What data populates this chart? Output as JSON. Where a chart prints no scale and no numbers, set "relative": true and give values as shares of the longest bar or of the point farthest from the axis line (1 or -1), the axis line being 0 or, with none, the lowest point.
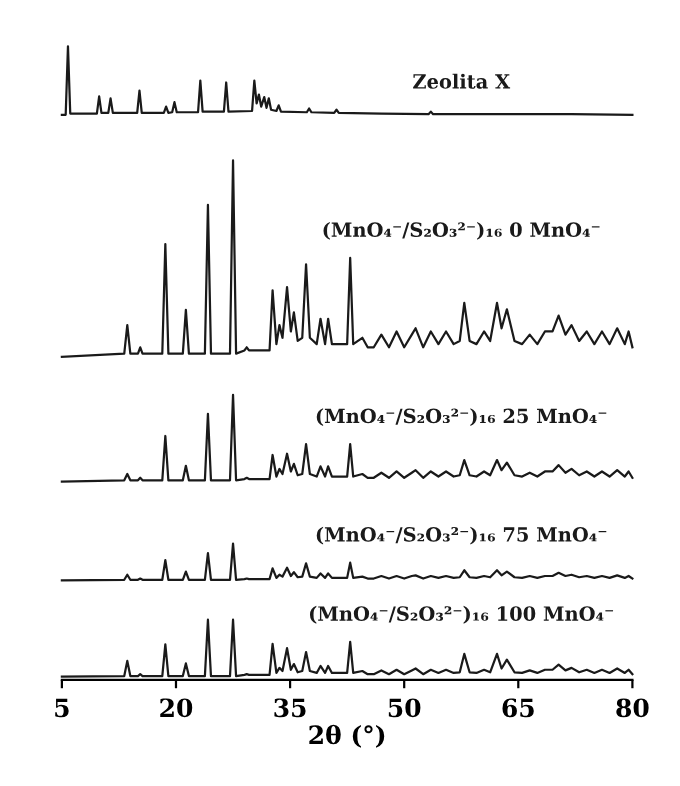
{
  "chart_data": {
    "type": "line",
    "relative": true,
    "xlabel": "2θ (°)",
    "xlim": [
      5,
      80
    ],
    "xticks": [
      5,
      20,
      35,
      50,
      65,
      80
    ],
    "grid": false,
    "legend": false,
    "marker": "none",
    "line_style": "solid",
    "x": [
      5,
      13.2,
      13.6,
      14.0,
      15.0,
      15.3,
      15.6,
      18.2,
      18.6,
      19.0,
      20.9,
      21.3,
      21.7,
      23.8,
      24.2,
      24.6,
      27.1,
      27.5,
      27.9,
      29.0,
      29.3,
      29.6,
      32.3,
      32.7,
      33.2,
      33.6,
      34.0,
      34.6,
      35.1,
      35.5,
      36.0,
      36.6,
      37.1,
      37.6,
      38.5,
      39.0,
      39.6,
      40.0,
      40.5,
      42.5,
      42.9,
      43.3,
      44.5,
      45.2,
      46.0,
      47,
      48,
      49,
      50,
      51,
      51.5,
      52.5,
      53.5,
      54.5,
      55.5,
      56.5,
      57.3,
      57.9,
      58.6,
      59.5,
      60.5,
      61.3,
      62.2,
      62.8,
      63.5,
      64.5,
      65.5,
      66.5,
      67.5,
      68.5,
      69.5,
      70.3,
      71.2,
      72,
      73,
      74,
      75,
      76,
      77,
      78,
      79,
      79.5,
      80
    ],
    "series": [
      {
        "name": "Zeolita X",
        "color": "#1a1a1a",
        "x": [
          5,
          5.5,
          5.8,
          6.1,
          9.6,
          9.9,
          10.2,
          11.1,
          11.4,
          11.7,
          14.9,
          15.2,
          15.5,
          18.4,
          18.7,
          19.0,
          19.5,
          19.8,
          20.1,
          22.9,
          23.2,
          23.5,
          26.3,
          26.6,
          26.9,
          30.0,
          30.3,
          30.6,
          30.9,
          31.2,
          31.6,
          31.9,
          32.2,
          32.5,
          33.2,
          33.5,
          33.8,
          37.2,
          37.5,
          37.8,
          40.8,
          41.1,
          41.4,
          47,
          53.2,
          53.5,
          53.8,
          60,
          66,
          72,
          80
        ],
        "values": [
          0.892,
          0.892,
          1.0,
          0.894,
          0.894,
          0.921,
          0.895,
          0.895,
          0.918,
          0.895,
          0.895,
          0.93,
          0.895,
          0.895,
          0.905,
          0.895,
          0.896,
          0.912,
          0.896,
          0.896,
          0.946,
          0.897,
          0.897,
          0.943,
          0.897,
          0.898,
          0.946,
          0.91,
          0.924,
          0.905,
          0.92,
          0.903,
          0.918,
          0.9,
          0.898,
          0.907,
          0.897,
          0.896,
          0.902,
          0.896,
          0.895,
          0.9,
          0.895,
          0.894,
          0.893,
          0.897,
          0.893,
          0.893,
          0.893,
          0.893,
          0.892
        ]
      },
      {
        "name": "(MnO₄⁻/S₂O₃²⁻)₁₆ 0 MnO₄⁻",
        "color": "#1a1a1a",
        "values": [
          0.51,
          0.515,
          0.56,
          0.515,
          0.515,
          0.525,
          0.515,
          0.515,
          0.688,
          0.515,
          0.515,
          0.584,
          0.515,
          0.515,
          0.75,
          0.515,
          0.515,
          0.82,
          0.515,
          0.52,
          0.525,
          0.52,
          0.52,
          0.615,
          0.53,
          0.56,
          0.54,
          0.62,
          0.55,
          0.58,
          0.535,
          0.54,
          0.656,
          0.54,
          0.53,
          0.57,
          0.53,
          0.57,
          0.53,
          0.53,
          0.666,
          0.53,
          0.54,
          0.525,
          0.525,
          0.545,
          0.525,
          0.55,
          0.525,
          0.545,
          0.555,
          0.525,
          0.55,
          0.53,
          0.55,
          0.53,
          0.535,
          0.595,
          0.535,
          0.53,
          0.55,
          0.535,
          0.595,
          0.555,
          0.585,
          0.535,
          0.53,
          0.545,
          0.53,
          0.55,
          0.55,
          0.575,
          0.545,
          0.56,
          0.535,
          0.55,
          0.53,
          0.55,
          0.53,
          0.555,
          0.53,
          0.55,
          0.525
        ]
      },
      {
        "name": "(MnO₄⁻/S₂O₃²⁻)₁₆ 25 MnO₄⁻",
        "color": "#1a1a1a",
        "values": [
          0.313,
          0.315,
          0.325,
          0.315,
          0.315,
          0.319,
          0.315,
          0.315,
          0.385,
          0.315,
          0.315,
          0.338,
          0.315,
          0.315,
          0.42,
          0.315,
          0.315,
          0.45,
          0.315,
          0.317,
          0.319,
          0.317,
          0.317,
          0.355,
          0.321,
          0.333,
          0.325,
          0.357,
          0.329,
          0.341,
          0.323,
          0.325,
          0.372,
          0.325,
          0.321,
          0.337,
          0.321,
          0.337,
          0.321,
          0.321,
          0.372,
          0.321,
          0.325,
          0.319,
          0.319,
          0.327,
          0.319,
          0.329,
          0.319,
          0.327,
          0.331,
          0.319,
          0.329,
          0.321,
          0.329,
          0.321,
          0.323,
          0.347,
          0.323,
          0.321,
          0.329,
          0.323,
          0.347,
          0.331,
          0.343,
          0.323,
          0.321,
          0.327,
          0.321,
          0.329,
          0.329,
          0.339,
          0.327,
          0.333,
          0.323,
          0.329,
          0.321,
          0.329,
          0.321,
          0.331,
          0.321,
          0.329,
          0.319
        ]
      },
      {
        "name": "(MnO₄⁻/S₂O₃²⁻)₁₆ 75 MnO₄⁻",
        "color": "#1a1a1a",
        "values": [
          0.157,
          0.158,
          0.166,
          0.158,
          0.158,
          0.16,
          0.158,
          0.158,
          0.189,
          0.158,
          0.158,
          0.171,
          0.158,
          0.158,
          0.2,
          0.158,
          0.158,
          0.215,
          0.158,
          0.159,
          0.16,
          0.159,
          0.159,
          0.176,
          0.161,
          0.166,
          0.163,
          0.177,
          0.164,
          0.17,
          0.162,
          0.163,
          0.184,
          0.163,
          0.161,
          0.168,
          0.161,
          0.168,
          0.161,
          0.161,
          0.185,
          0.161,
          0.163,
          0.16,
          0.16,
          0.164,
          0.16,
          0.164,
          0.16,
          0.164,
          0.165,
          0.16,
          0.164,
          0.161,
          0.164,
          0.161,
          0.162,
          0.173,
          0.162,
          0.161,
          0.164,
          0.162,
          0.173,
          0.165,
          0.171,
          0.162,
          0.161,
          0.164,
          0.161,
          0.164,
          0.164,
          0.169,
          0.164,
          0.166,
          0.162,
          0.164,
          0.161,
          0.164,
          0.161,
          0.165,
          0.161,
          0.164,
          0.16
        ]
      },
      {
        "name": "(MnO₄⁻/S₂O₃²⁻)₁₆ 100 MnO₄⁻",
        "color": "#1a1a1a",
        "values": [
          0.005,
          0.006,
          0.03,
          0.006,
          0.006,
          0.009,
          0.006,
          0.006,
          0.056,
          0.006,
          0.006,
          0.026,
          0.006,
          0.006,
          0.095,
          0.006,
          0.006,
          0.095,
          0.006,
          0.008,
          0.009,
          0.008,
          0.008,
          0.057,
          0.011,
          0.019,
          0.014,
          0.05,
          0.016,
          0.025,
          0.012,
          0.014,
          0.044,
          0.014,
          0.011,
          0.022,
          0.011,
          0.022,
          0.011,
          0.011,
          0.06,
          0.011,
          0.014,
          0.009,
          0.009,
          0.015,
          0.009,
          0.016,
          0.009,
          0.015,
          0.018,
          0.009,
          0.016,
          0.011,
          0.016,
          0.011,
          0.012,
          0.041,
          0.012,
          0.011,
          0.016,
          0.012,
          0.041,
          0.018,
          0.032,
          0.012,
          0.011,
          0.015,
          0.011,
          0.016,
          0.016,
          0.024,
          0.015,
          0.019,
          0.012,
          0.016,
          0.011,
          0.016,
          0.011,
          0.018,
          0.011,
          0.016,
          0.009
        ]
      }
    ]
  }
}
